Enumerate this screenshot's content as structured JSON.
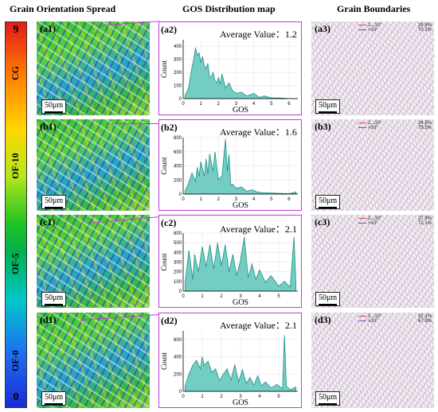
{
  "headers": {
    "col1": "Grain Orientation Spread",
    "col2": "GOS Distribution map",
    "col3": "Grain Boundaries"
  },
  "colorbar": {
    "top": "9",
    "bottom": "0"
  },
  "rows": [
    {
      "label": "CG",
      "tag1": "(a1)",
      "tag2": "(a2)",
      "tag3": "(a3)",
      "avg": "Average Value：1.2",
      "scale": "50μm",
      "lg1": "2...10°",
      "lg2": ">10°",
      "p1": "29.8%",
      "p2": "70.2%"
    },
    {
      "label": "OF-10",
      "tag1": "(b1)",
      "tag2": "(b2)",
      "tag3": "(b3)",
      "avg": "Average Value：1.6",
      "scale": "50μm",
      "lg1": "2...10°",
      "lg2": ">10°",
      "p1": "24.5%",
      "p2": "75.5%"
    },
    {
      "label": "OF-5",
      "tag1": "(c1)",
      "tag2": "(c2)",
      "tag3": "(c3)",
      "avg": "Average Value：2.1",
      "scale": "50μm",
      "lg1": "2...10°",
      "lg2": ">10°",
      "p1": "27.9%",
      "p2": "72.1%"
    },
    {
      "label": "OF-0",
      "tag1": "(d1)",
      "tag2": "(d2)",
      "tag3": "(d3)",
      "avg": "Average Value：2.1",
      "scale": "50μm",
      "lg1": "2...10°",
      "lg2": ">10°",
      "p1": "32.1%",
      "p2": "67.9%"
    }
  ],
  "chart_data": [
    {
      "type": "area",
      "xlabel": "GOS",
      "ylabel": "Count",
      "xlim": [
        0,
        6.5
      ],
      "ylim": [
        0,
        450
      ],
      "xticks": [
        "0",
        "1",
        "2",
        "3",
        "4",
        "5",
        "6"
      ],
      "yticks": [
        "0",
        "100",
        "200",
        "300",
        "400"
      ],
      "x": [
        0.1,
        0.3,
        0.5,
        0.6,
        0.7,
        0.8,
        0.9,
        1.0,
        1.1,
        1.2,
        1.3,
        1.4,
        1.5,
        1.6,
        1.7,
        1.8,
        1.9,
        2.0,
        2.1,
        2.2,
        2.4,
        2.6,
        2.8,
        3.0,
        3.3,
        3.6,
        4.0,
        4.3,
        4.6,
        5.0,
        5.5,
        6.0,
        6.5
      ],
      "y": [
        20,
        80,
        240,
        300,
        390,
        330,
        350,
        280,
        320,
        250,
        230,
        270,
        160,
        170,
        200,
        140,
        120,
        160,
        110,
        190,
        80,
        120,
        60,
        40,
        50,
        20,
        40,
        10,
        20,
        5,
        5,
        0,
        0
      ]
    },
    {
      "type": "area",
      "xlabel": "GOS",
      "ylabel": "Count",
      "xlim": [
        0,
        6.5
      ],
      "ylim": [
        0,
        800
      ],
      "xticks": [
        "0",
        "1",
        "2",
        "3",
        "4",
        "5",
        "6"
      ],
      "yticks": [
        "0",
        "200",
        "400",
        "600",
        "800"
      ],
      "x": [
        0.1,
        0.3,
        0.5,
        0.7,
        0.8,
        0.9,
        1.0,
        1.2,
        1.3,
        1.4,
        1.5,
        1.7,
        1.8,
        2.0,
        2.2,
        2.4,
        2.5,
        2.6,
        2.7,
        2.8,
        3.0,
        3.3,
        3.6,
        3.9,
        4.2,
        4.5,
        5.0,
        5.5,
        6.0,
        6.4
      ],
      "y": [
        40,
        150,
        300,
        180,
        380,
        250,
        460,
        250,
        500,
        280,
        570,
        320,
        600,
        200,
        260,
        780,
        320,
        560,
        120,
        140,
        80,
        100,
        40,
        60,
        30,
        20,
        15,
        10,
        5,
        30
      ]
    },
    {
      "type": "area",
      "xlabel": "GOS",
      "ylabel": "Count",
      "xlim": [
        0,
        6
      ],
      "ylim": [
        0,
        600
      ],
      "xticks": [
        "0",
        "1",
        "2",
        "3",
        "4",
        "5"
      ],
      "yticks": [
        "0",
        "100",
        "200",
        "300",
        "400",
        "500",
        "600"
      ],
      "x": [
        0.1,
        0.3,
        0.5,
        0.6,
        0.8,
        1.0,
        1.2,
        1.4,
        1.6,
        1.8,
        2.0,
        2.2,
        2.4,
        2.6,
        2.8,
        3.0,
        3.2,
        3.4,
        3.6,
        3.8,
        4.0,
        4.3,
        4.6,
        5.0,
        5.3,
        5.6,
        5.8,
        5.9
      ],
      "y": [
        80,
        420,
        120,
        380,
        200,
        460,
        250,
        480,
        230,
        500,
        260,
        480,
        200,
        380,
        160,
        320,
        560,
        140,
        280,
        120,
        220,
        90,
        160,
        50,
        100,
        40,
        560,
        80
      ]
    },
    {
      "type": "area",
      "xlabel": "GOS",
      "ylabel": "Count",
      "xlim": [
        0,
        6
      ],
      "ylim": [
        0,
        700
      ],
      "xticks": [
        "0",
        "1",
        "2",
        "3",
        "4",
        "5"
      ],
      "yticks": [
        "0",
        "200",
        "400",
        "600"
      ],
      "x": [
        0.1,
        0.3,
        0.5,
        0.7,
        0.9,
        1.0,
        1.1,
        1.3,
        1.5,
        1.7,
        1.9,
        2.1,
        2.3,
        2.5,
        2.7,
        2.9,
        3.1,
        3.3,
        3.5,
        3.7,
        3.9,
        4.1,
        4.3,
        4.6,
        4.9,
        5.2,
        5.3,
        5.4,
        5.6,
        5.9
      ],
      "y": [
        60,
        200,
        300,
        360,
        260,
        400,
        300,
        350,
        220,
        260,
        120,
        200,
        260,
        130,
        310,
        110,
        250,
        90,
        160,
        70,
        180,
        60,
        110,
        40,
        80,
        30,
        650,
        60,
        20,
        50
      ]
    }
  ]
}
